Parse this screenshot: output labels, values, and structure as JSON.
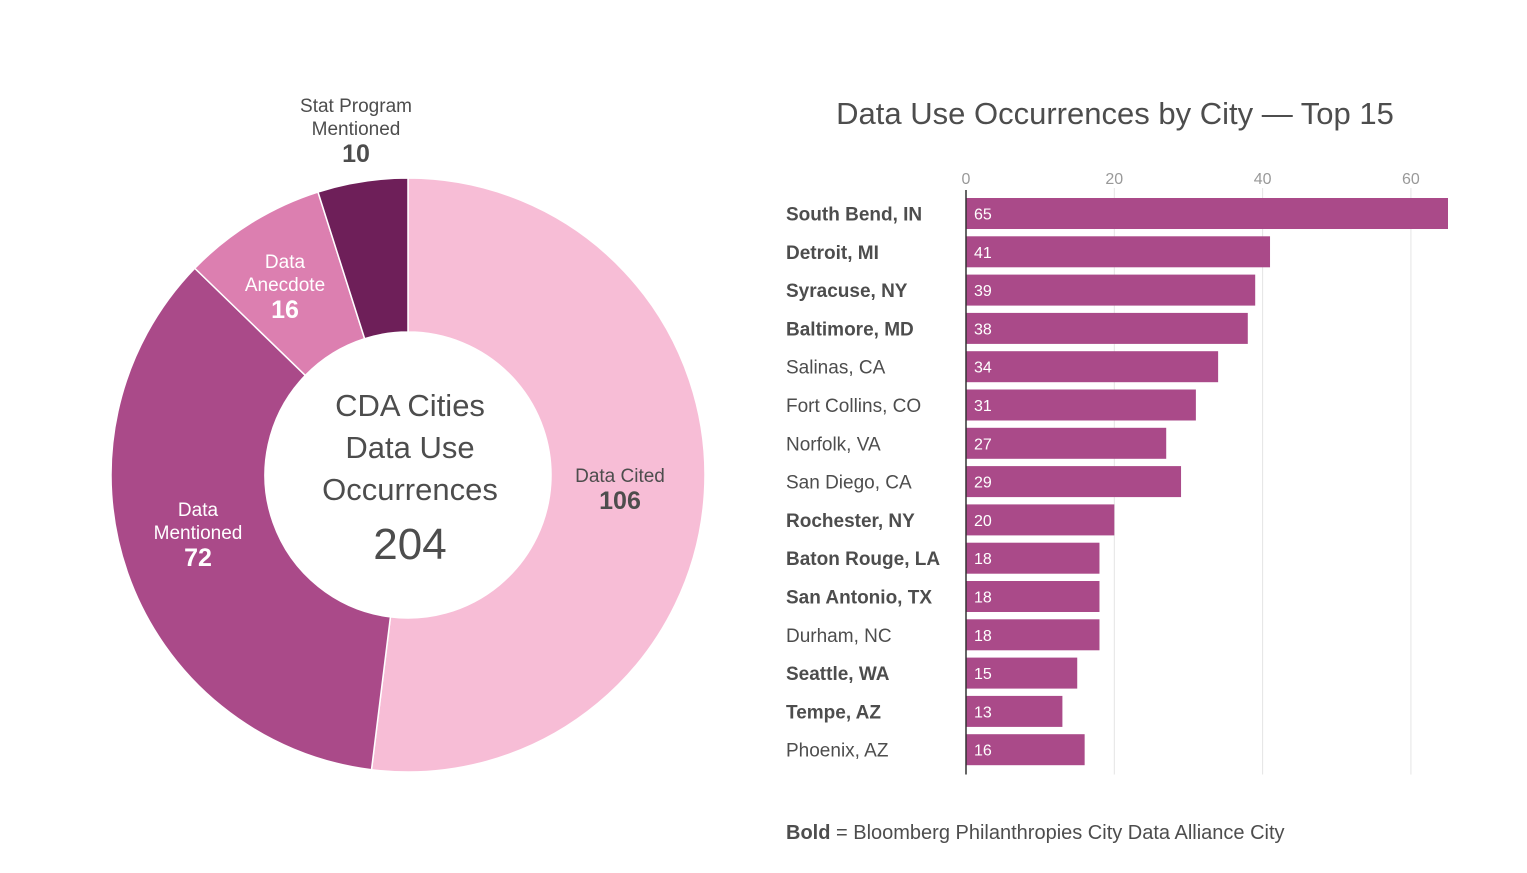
{
  "chart_data": [
    {
      "type": "pie",
      "center_title_lines": [
        "CDA Cities",
        "Data Use",
        "Occurrences"
      ],
      "center_total": "204",
      "slices": [
        {
          "label_lines": [
            "Data Cited"
          ],
          "value": 106,
          "color": "#f7bdd6"
        },
        {
          "label_lines": [
            "Data",
            "Mentioned"
          ],
          "value": 72,
          "color": "#aa4a89"
        },
        {
          "label_lines": [
            "Data",
            "Anecdote"
          ],
          "value": 16,
          "color": "#dc7fb0"
        },
        {
          "label_lines": [
            "Stat Program",
            "Mentioned"
          ],
          "value": 10,
          "color": "#6e1f59"
        }
      ]
    },
    {
      "type": "bar",
      "orientation": "horizontal",
      "title": "Data Use Occurrences by City — Top 15",
      "xlim": [
        0,
        65
      ],
      "xticks": [
        0,
        20,
        40,
        60
      ],
      "bar_color": "#aa4a89",
      "gridline_color": "#e4e4e4",
      "categories": [
        {
          "label": "South Bend, IN",
          "value": 65,
          "bold": true
        },
        {
          "label": "Detroit, MI",
          "value": 41,
          "bold": true
        },
        {
          "label": "Syracuse, NY",
          "value": 39,
          "bold": true
        },
        {
          "label": "Baltimore, MD",
          "value": 38,
          "bold": true
        },
        {
          "label": "Salinas, CA",
          "value": 34,
          "bold": false
        },
        {
          "label": "Fort Collins, CO",
          "value": 31,
          "bold": false
        },
        {
          "label": "Norfolk, VA",
          "value": 27,
          "bold": false
        },
        {
          "label": "San Diego, CA",
          "value": 29,
          "bold": false
        },
        {
          "label": "Rochester, NY",
          "value": 20,
          "bold": true
        },
        {
          "label": "Baton Rouge, LA",
          "value": 18,
          "bold": true
        },
        {
          "label": "San Antonio, TX",
          "value": 18,
          "bold": true
        },
        {
          "label": "Durham, NC",
          "value": 18,
          "bold": false
        },
        {
          "label": "Seattle, WA",
          "value": 15,
          "bold": true
        },
        {
          "label": "Tempe, AZ",
          "value": 13,
          "bold": true
        },
        {
          "label": "Phoenix, AZ",
          "value": 16,
          "bold": false
        }
      ]
    }
  ],
  "footnote": {
    "bold_part": "Bold",
    "rest": " = Bloomberg Philanthropies City Data Alliance City"
  }
}
